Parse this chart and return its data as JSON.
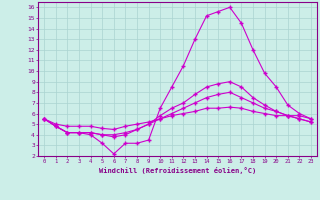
{
  "xlabel": "Windchill (Refroidissement éolien,°C)",
  "bg_color": "#cceee8",
  "plot_bg_color": "#cceee8",
  "line_color": "#cc00cc",
  "grid_color": "#aad4d0",
  "axis_color": "#880088",
  "tick_color": "#880088",
  "xlim": [
    -0.5,
    23.5
  ],
  "ylim": [
    2,
    16.5
  ],
  "xticks": [
    0,
    1,
    2,
    3,
    4,
    5,
    6,
    7,
    8,
    9,
    10,
    11,
    12,
    13,
    14,
    15,
    16,
    17,
    18,
    19,
    20,
    21,
    22,
    23
  ],
  "yticks": [
    2,
    3,
    4,
    5,
    6,
    7,
    8,
    9,
    10,
    11,
    12,
    13,
    14,
    15,
    16
  ],
  "series1_x": [
    0,
    1,
    2,
    3,
    4,
    5,
    6,
    7,
    8,
    9,
    10,
    11,
    12,
    13,
    14,
    15,
    16,
    17,
    18,
    19,
    20,
    21,
    22,
    23
  ],
  "series1_y": [
    5.5,
    4.8,
    4.2,
    4.2,
    4.0,
    3.2,
    2.2,
    3.2,
    3.2,
    3.5,
    6.5,
    8.5,
    10.5,
    13.0,
    15.2,
    15.6,
    16.0,
    14.5,
    12.0,
    9.8,
    8.5,
    6.8,
    6.0,
    5.5
  ],
  "series2_x": [
    0,
    1,
    2,
    3,
    4,
    5,
    6,
    7,
    8,
    9,
    10,
    11,
    12,
    13,
    14,
    15,
    16,
    17,
    18,
    19,
    20,
    21,
    22,
    23
  ],
  "series2_y": [
    5.5,
    4.8,
    4.2,
    4.2,
    4.2,
    4.0,
    3.8,
    4.0,
    4.5,
    5.0,
    5.8,
    6.5,
    7.0,
    7.8,
    8.5,
    8.8,
    9.0,
    8.5,
    7.5,
    6.8,
    6.2,
    5.8,
    5.5,
    5.2
  ],
  "series3_x": [
    0,
    1,
    2,
    3,
    4,
    5,
    6,
    7,
    8,
    9,
    10,
    11,
    12,
    13,
    14,
    15,
    16,
    17,
    18,
    19,
    20,
    21,
    22,
    23
  ],
  "series3_y": [
    5.5,
    4.8,
    4.2,
    4.2,
    4.2,
    4.0,
    4.0,
    4.2,
    4.5,
    5.0,
    5.5,
    6.0,
    6.5,
    7.0,
    7.5,
    7.8,
    8.0,
    7.5,
    7.0,
    6.5,
    6.2,
    5.8,
    5.5,
    5.2
  ],
  "series4_x": [
    0,
    1,
    2,
    3,
    4,
    5,
    6,
    7,
    8,
    9,
    10,
    11,
    12,
    13,
    14,
    15,
    16,
    17,
    18,
    19,
    20,
    21,
    22,
    23
  ],
  "series4_y": [
    5.5,
    5.0,
    4.8,
    4.8,
    4.8,
    4.6,
    4.5,
    4.8,
    5.0,
    5.2,
    5.5,
    5.8,
    6.0,
    6.2,
    6.5,
    6.5,
    6.6,
    6.5,
    6.2,
    6.0,
    5.8,
    5.8,
    5.8,
    5.5
  ],
  "marker": "+",
  "linewidth": 0.8,
  "markersize": 3
}
